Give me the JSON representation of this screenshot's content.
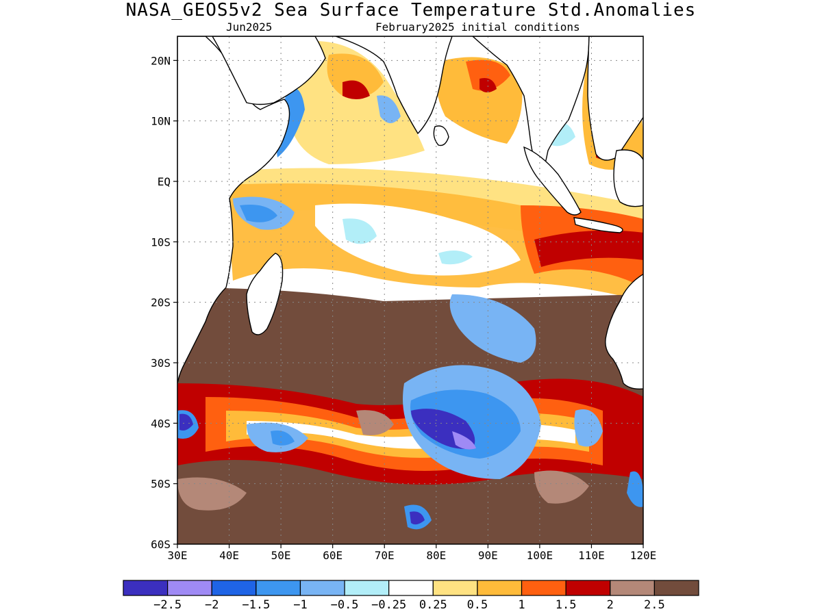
{
  "title": "NASA_GEOS5v2 Sea Surface Temperature Std.Anomalies",
  "subtitle_left": "Jun2025",
  "subtitle_right": "February2025 initial conditions",
  "map": {
    "lon_range": [
      30,
      120
    ],
    "lat_range": [
      -60,
      24
    ],
    "lat_ticks": [
      {
        "value": 20,
        "label": "20N"
      },
      {
        "value": 10,
        "label": "10N"
      },
      {
        "value": 0,
        "label": "EQ"
      },
      {
        "value": -10,
        "label": "10S"
      },
      {
        "value": -20,
        "label": "20S"
      },
      {
        "value": -30,
        "label": "30S"
      },
      {
        "value": -40,
        "label": "40S"
      },
      {
        "value": -50,
        "label": "50S"
      },
      {
        "value": -60,
        "label": "60S"
      }
    ],
    "lon_ticks": [
      {
        "value": 30,
        "label": "30E"
      },
      {
        "value": 40,
        "label": "40E"
      },
      {
        "value": 50,
        "label": "50E"
      },
      {
        "value": 60,
        "label": "60E"
      },
      {
        "value": 70,
        "label": "70E"
      },
      {
        "value": 80,
        "label": "80E"
      },
      {
        "value": 90,
        "label": "90E"
      },
      {
        "value": 100,
        "label": "100E"
      },
      {
        "value": 110,
        "label": "110E"
      },
      {
        "value": 120,
        "label": "120E"
      }
    ]
  },
  "colorbar": {
    "colors": [
      "#3b2fbf",
      "#9f8af5",
      "#1f64e6",
      "#3d96f0",
      "#78b4f4",
      "#b2eef8",
      "#ffffff",
      "#ffe282",
      "#ffbb3a",
      "#ff6010",
      "#c00000",
      "#b48878",
      "#724c3c"
    ],
    "labels": [
      "−2.5",
      "−2",
      "−1.5",
      "−1",
      "−0.5",
      "−0.25",
      "0.25",
      "0.5",
      "1",
      "1.5",
      "2",
      "2.5"
    ]
  },
  "land_color": "#ffffff"
}
